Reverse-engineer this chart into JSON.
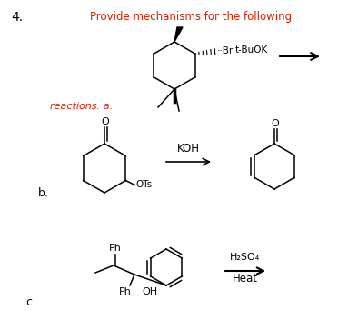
{
  "title": "Provide mechanisms for the following",
  "problem_number": "4.",
  "bg_color": "#ffffff",
  "text_color": "#000000",
  "reactions_label": "reactions: a.",
  "b_label": "b.",
  "c_label": "c.",
  "reagent_a": "Br  t-BuOK",
  "reagent_b": "KOH",
  "reagent_c1": "H₂SO₄",
  "reagent_c2": "Heat",
  "ots_label": "OTs",
  "ph_label": "Ph",
  "ph2_label": "Ph",
  "oh_label": "OH"
}
